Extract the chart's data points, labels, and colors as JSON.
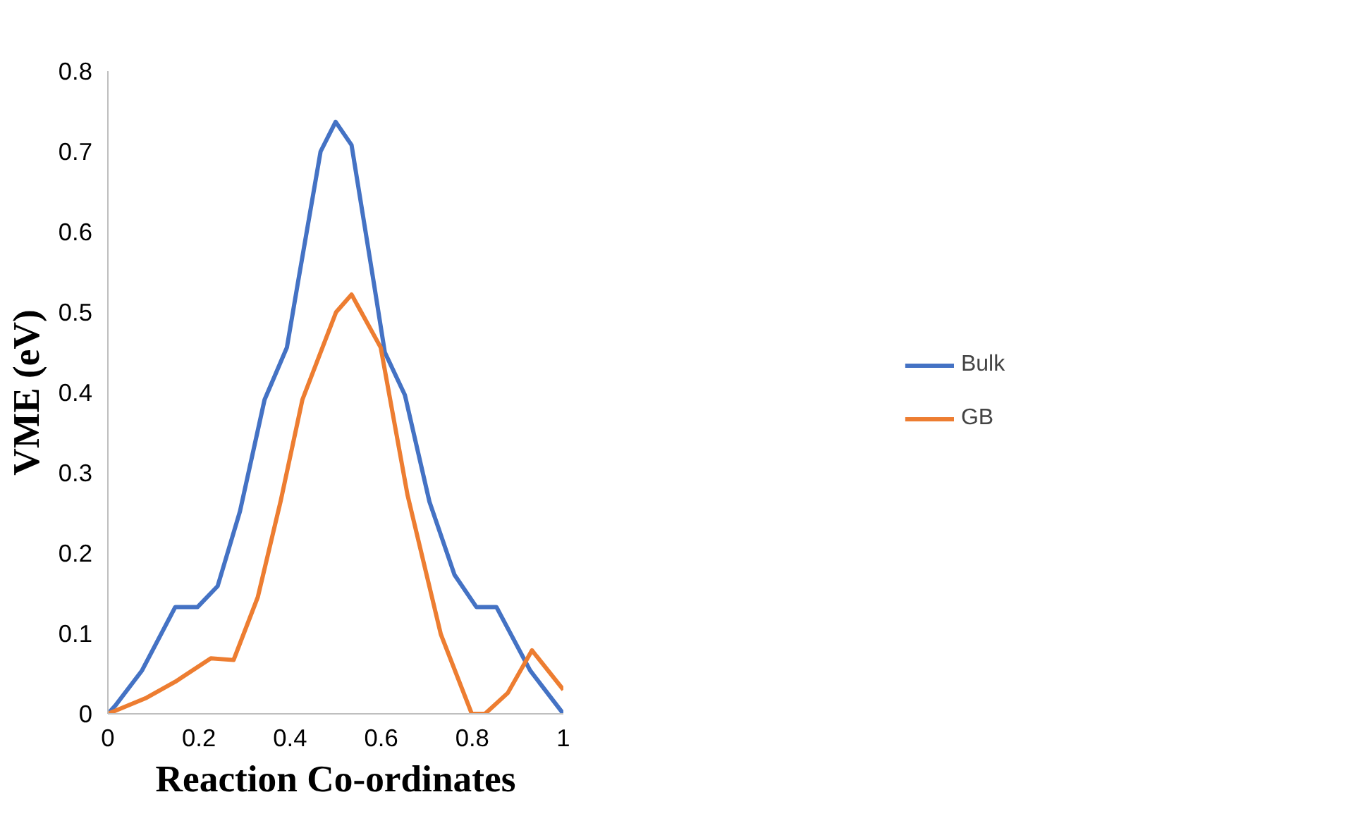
{
  "chart_data": {
    "type": "line",
    "xlabel": "Reaction Co-ordinates",
    "ylabel": "VME (eV)",
    "xlim": [
      0,
      1
    ],
    "ylim": [
      0,
      0.8
    ],
    "xticks": [
      0,
      0.2,
      0.4,
      0.6,
      0.8,
      1
    ],
    "yticks": [
      0,
      0.1,
      0.2,
      0.3,
      0.4,
      0.5,
      0.6,
      0.7,
      0.8
    ],
    "grid": false,
    "legend": "right",
    "line_style": "solid",
    "series": [
      {
        "name": "Bulk",
        "color": "#4472c4",
        "x": [
          0,
          0.016,
          0.075,
          0.148,
          0.197,
          0.241,
          0.29,
          0.344,
          0.393,
          0.417,
          0.467,
          0.5,
          0.535,
          0.584,
          0.608,
          0.652,
          0.706,
          0.761,
          0.809,
          0.853,
          0.927,
          1
        ],
        "values": [
          0,
          0.01,
          0.054,
          0.133,
          0.133,
          0.159,
          0.252,
          0.391,
          0.456,
          0.536,
          0.7,
          0.737,
          0.708,
          0.536,
          0.45,
          0.397,
          0.264,
          0.173,
          0.133,
          0.133,
          0.054,
          0
        ]
      },
      {
        "name": "GB",
        "color": "#ed7d31",
        "x": [
          0,
          0.085,
          0.148,
          0.226,
          0.276,
          0.329,
          0.379,
          0.427,
          0.501,
          0.535,
          0.599,
          0.658,
          0.731,
          0.799,
          0.828,
          0.878,
          0.931,
          1
        ],
        "values": [
          0,
          0.02,
          0.04,
          0.069,
          0.067,
          0.145,
          0.264,
          0.391,
          0.5,
          0.522,
          0.456,
          0.272,
          0.099,
          0,
          0,
          0.026,
          0.079,
          0.03
        ]
      }
    ]
  }
}
